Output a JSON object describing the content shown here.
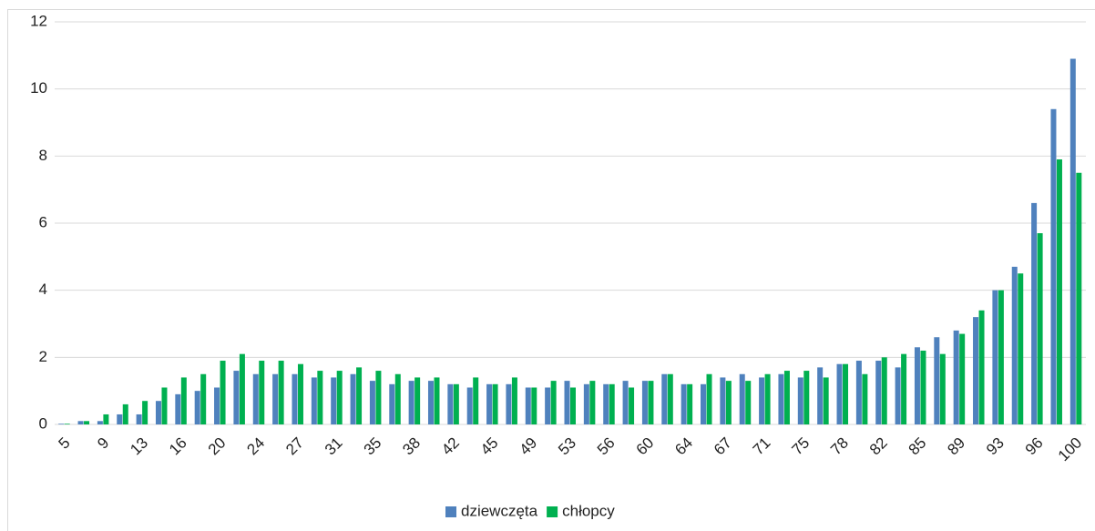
{
  "chart_data": {
    "type": "bar",
    "categories": [
      "5",
      null,
      "9",
      null,
      "13",
      null,
      "16",
      null,
      "20",
      null,
      "24",
      null,
      "27",
      null,
      "31",
      null,
      "35",
      null,
      "38",
      null,
      "42",
      null,
      "45",
      null,
      "49",
      null,
      "53",
      null,
      "56",
      null,
      "60",
      null,
      "64",
      null,
      "67",
      null,
      "71",
      null,
      "75",
      null,
      "78",
      null,
      "82",
      null,
      "85",
      null,
      "89",
      null,
      "93",
      null,
      "96",
      null,
      "100"
    ],
    "series": [
      {
        "name": "dziewczęta",
        "color": "#4f81bd",
        "values": [
          0.02,
          0.1,
          0.1,
          0.3,
          0.3,
          0.7,
          0.9,
          1.0,
          1.1,
          1.6,
          1.5,
          1.5,
          1.5,
          1.4,
          1.4,
          1.5,
          1.3,
          1.2,
          1.3,
          1.3,
          1.2,
          1.1,
          1.2,
          1.2,
          1.1,
          1.1,
          1.3,
          1.2,
          1.2,
          1.3,
          1.3,
          1.5,
          1.2,
          1.2,
          1.4,
          1.5,
          1.4,
          1.5,
          1.4,
          1.7,
          1.8,
          1.9,
          1.9,
          1.7,
          2.3,
          2.6,
          2.8,
          3.2,
          4.0,
          4.7,
          6.6,
          9.4,
          10.9
        ]
      },
      {
        "name": "chłopcy",
        "color": "#00b050",
        "values": [
          0.02,
          0.1,
          0.3,
          0.6,
          0.7,
          1.1,
          1.4,
          1.5,
          1.9,
          2.1,
          1.9,
          1.9,
          1.8,
          1.6,
          1.6,
          1.7,
          1.6,
          1.5,
          1.4,
          1.4,
          1.2,
          1.4,
          1.2,
          1.4,
          1.1,
          1.3,
          1.1,
          1.3,
          1.2,
          1.1,
          1.3,
          1.5,
          1.2,
          1.5,
          1.3,
          1.3,
          1.5,
          1.6,
          1.6,
          1.4,
          1.8,
          1.5,
          2.0,
          2.1,
          2.2,
          2.1,
          2.7,
          3.4,
          4.0,
          4.5,
          5.7,
          7.9,
          7.5
        ]
      }
    ],
    "ylim": [
      0,
      12
    ],
    "yticks": [
      0,
      2,
      4,
      6,
      8,
      10,
      12
    ],
    "grid": true,
    "legend": "bottom"
  }
}
